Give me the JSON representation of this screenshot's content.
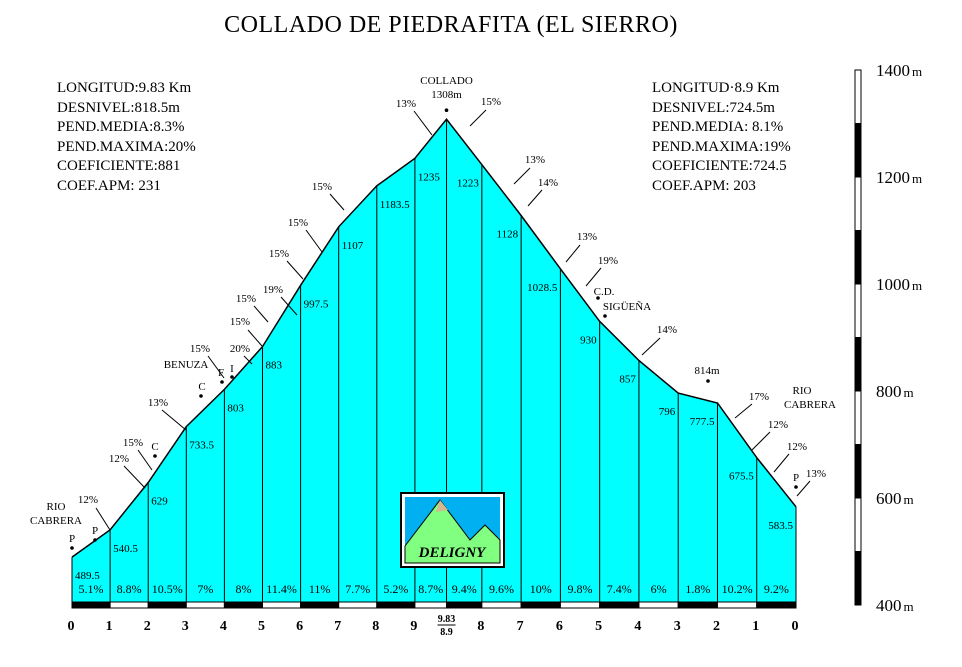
{
  "title": "COLLADO  DE  PIEDRAFITA (EL SIERRO)",
  "stats_left": [
    "LONGITUD:9.83 Km",
    "DESNIVEL:818.5m",
    "PEND.MEDIA:8.3%",
    "PEND.MAXIMA:20%",
    "COEFICIENTE:881",
    "COEF.APM: 231"
  ],
  "stats_right": [
    "LONGITUD·8.9 Km",
    "DESNIVEL:724.5m",
    "PEND.MEDIA: 8.1%",
    "PEND.MAXIMA:19%",
    "COEFICIENTE:724.5",
    "COEF.APM: 203"
  ],
  "colors": {
    "fill": "#00ffff",
    "outline": "#000000",
    "bar": "#000000",
    "logo_sky": "#00b0f0",
    "logo_grass": "#80ff80",
    "logo_earth": "#d7b78f"
  },
  "chart_data": {
    "type": "area",
    "title": "COLLADO  DE  PIEDRAFITA (EL SIERRO)",
    "ylim": [
      400,
      1400
    ],
    "y_ticks": [
      {
        "label": "400",
        "value": 400
      },
      {
        "label": "600",
        "value": 600
      },
      {
        "label": "800",
        "value": 800
      },
      {
        "label": "1000",
        "value": 1000
      },
      {
        "label": "1200",
        "value": 1200
      },
      {
        "label": "1400",
        "value": 1400
      }
    ],
    "y_unit": "m",
    "summit": {
      "name": "COLLADO",
      "altitude_label": "1308m",
      "altitude": 1308
    },
    "km_labels": [
      "0",
      "1",
      "2",
      "3",
      "4",
      "5",
      "6",
      "7",
      "8",
      "9",
      "8",
      "7",
      "6",
      "5",
      "4",
      "3",
      "2",
      "1",
      "0"
    ],
    "summit_km_label": [
      "9.83",
      "8.9"
    ],
    "left_side": {
      "km": [
        0,
        1,
        2,
        3,
        4,
        5,
        6,
        7,
        8,
        9,
        9.83
      ],
      "altitudes": [
        489.5,
        540.5,
        629,
        733.5,
        803,
        883,
        997.5,
        1107,
        1183.5,
        1235,
        1308
      ],
      "altitude_labels": [
        "489.5",
        "540.5",
        "629",
        "733.5",
        "803",
        "883",
        "997.5",
        "1107",
        "1183.5",
        "1235"
      ],
      "slopes": [
        "5.1%",
        "8.8%",
        "10.5%",
        "7%",
        "8%",
        "11.4%",
        "11%",
        "7.7%",
        "5.2%",
        "8.7%"
      ]
    },
    "right_side": {
      "km": [
        8.9,
        8,
        7,
        6,
        5,
        4,
        3,
        2,
        1,
        0
      ],
      "altitudes": [
        1308,
        1223,
        1128,
        1028.5,
        930,
        857,
        796,
        777.5,
        675.5,
        583.5
      ],
      "altitude_labels": [
        "1223",
        "1128",
        "1028.5",
        "930",
        "857",
        "796",
        "777.5",
        "675.5",
        "583.5"
      ],
      "slopes": [
        "9.4%",
        "9.6%",
        "10%",
        "9.8%",
        "7.4%",
        "6%",
        "1.8%",
        "10.2%",
        "9.2%"
      ]
    },
    "places": [
      "RIO",
      "CABRERA",
      "BENUZA",
      "C.D.",
      "SIGÜEÑA",
      "814m",
      "RIO",
      "CABRERA"
    ],
    "point_letters": [
      "P",
      "P",
      "C",
      "C",
      "F",
      "I",
      "P"
    ],
    "ramp_labels": [
      "12%",
      "12%",
      "15%",
      "13%",
      "15%",
      "20%",
      "15%",
      "15%",
      "19%",
      "15%",
      "15%",
      "15%",
      "13%",
      "15%",
      "13%",
      "14%",
      "13%",
      "19%",
      "14%",
      "17%",
      "12%",
      "12%",
      "13%"
    ],
    "logo_text": "DELIGNY"
  }
}
